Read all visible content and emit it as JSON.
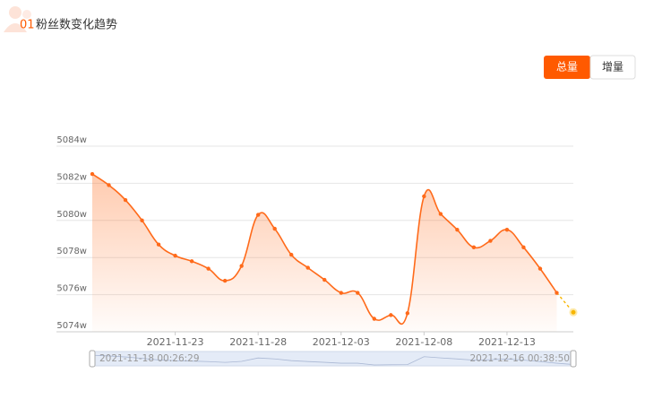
{
  "header": {
    "number": "01",
    "title": "粉丝数变化趋势"
  },
  "buttons": [
    "总量",
    "增量"
  ],
  "chart_data": {
    "type": "line",
    "categories": [
      null,
      null,
      null,
      null,
      null,
      "2021-11-23",
      null,
      null,
      null,
      null,
      "2021-11-28",
      null,
      null,
      null,
      null,
      "2021-12-03",
      null,
      null,
      null,
      null,
      "2021-12-08",
      null,
      null,
      null,
      null,
      "2021-12-13",
      null,
      null,
      null,
      null
    ],
    "series": [
      {
        "color": "#ff6a1a",
        "values": [
          5082.5,
          5081.9,
          5081.1,
          5080.0,
          5078.7,
          5078.1,
          5077.8,
          5077.4,
          5076.75,
          5077.55,
          5080.3,
          5079.55,
          5078.15,
          5077.45,
          5076.8,
          5076.1,
          5076.1,
          5074.7,
          5074.9,
          5075.0,
          5081.3,
          5080.35,
          5079.5,
          5078.55,
          5078.9,
          5079.5,
          5078.55,
          5077.4,
          5076.1,
          5075.05
        ]
      }
    ],
    "last_point": {
      "color": "#f7b500",
      "dashed": true
    },
    "ylim": [
      5074,
      5084
    ],
    "yticks": [
      {
        "value": 5074,
        "label": "5074w"
      },
      {
        "value": 5076,
        "label": "5076w"
      },
      {
        "value": 5078,
        "label": "5078w"
      },
      {
        "value": 5080,
        "label": "5080w"
      },
      {
        "value": 5082,
        "label": "5082w"
      },
      {
        "value": 5084,
        "label": "5084w"
      }
    ],
    "grid": true,
    "slider": {
      "start": "2021-11-18 00:26:29",
      "end": "2021-12-16 00:38:50"
    }
  }
}
